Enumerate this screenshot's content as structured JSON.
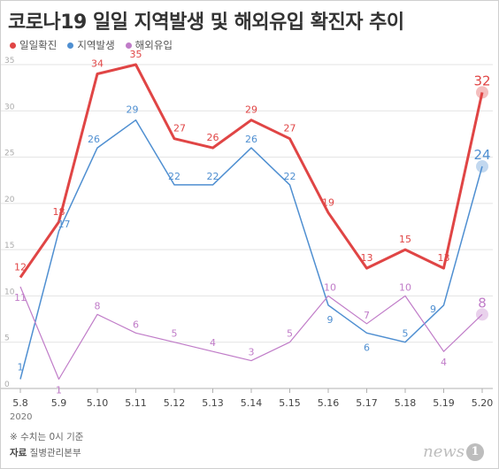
{
  "title": "코로나19 일일 지역발생 및 해외유입 확진자 추이",
  "colors": {
    "daily": "#e04545",
    "local": "#4f8fd1",
    "imported": "#c07cc8",
    "grid": "#e3e3e3",
    "axis": "#b0b0b0"
  },
  "chart_data": {
    "type": "line",
    "title": "코로나19 일일 지역발생 및 해외유입 확진자 추이",
    "categories": [
      "5.8",
      "5.9",
      "5.10",
      "5.11",
      "5.12",
      "5.13",
      "5.14",
      "5.15",
      "5.16",
      "5.17",
      "5.18",
      "5.19",
      "5.20"
    ],
    "x_sublabel": "2020",
    "ylim": [
      0,
      35
    ],
    "yticks": [
      0,
      5,
      10,
      15,
      20,
      25,
      30,
      35
    ],
    "grid": true,
    "legend_position": "top-left",
    "series": [
      {
        "name": "일일확진",
        "key": "daily",
        "values": [
          12,
          18,
          34,
          35,
          27,
          26,
          29,
          27,
          19,
          13,
          15,
          13,
          32
        ]
      },
      {
        "name": "지역발생",
        "key": "local",
        "values": [
          1,
          17,
          26,
          29,
          22,
          22,
          26,
          22,
          9,
          6,
          5,
          9,
          24
        ]
      },
      {
        "name": "해외유입",
        "key": "imported",
        "values": [
          11,
          1,
          8,
          6,
          5,
          4,
          3,
          5,
          10,
          7,
          10,
          4,
          8
        ]
      }
    ]
  },
  "footnote": "※ 수치는 0시 기준",
  "source_label": "자료",
  "source_value": "질병관리본부",
  "logo": {
    "text": "news",
    "mark": "1"
  }
}
